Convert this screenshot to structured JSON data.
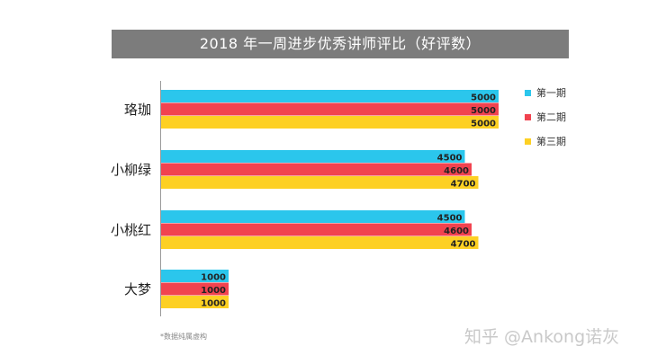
{
  "chart_data": {
    "type": "bar",
    "orientation": "horizontal",
    "title": "2018 年一周进步优秀讲师评比（好评数）",
    "categories": [
      "珞珈",
      "小柳绿",
      "小桃红",
      "大梦"
    ],
    "series": [
      {
        "name": "第一期",
        "color": "#2bc6ec",
        "values": [
          5000,
          4500,
          4500,
          1000
        ]
      },
      {
        "name": "第二期",
        "color": "#f1434f",
        "values": [
          5000,
          4600,
          4600,
          1000
        ]
      },
      {
        "name": "第三期",
        "color": "#fdd023",
        "values": [
          5000,
          4700,
          4700,
          1000
        ]
      }
    ],
    "xlim": [
      0,
      5000
    ],
    "data_labels": true,
    "legend_position": "right",
    "grid": false
  },
  "footnote": "*数据纯属虚构",
  "watermark": "知乎 @Ankong诺灰"
}
